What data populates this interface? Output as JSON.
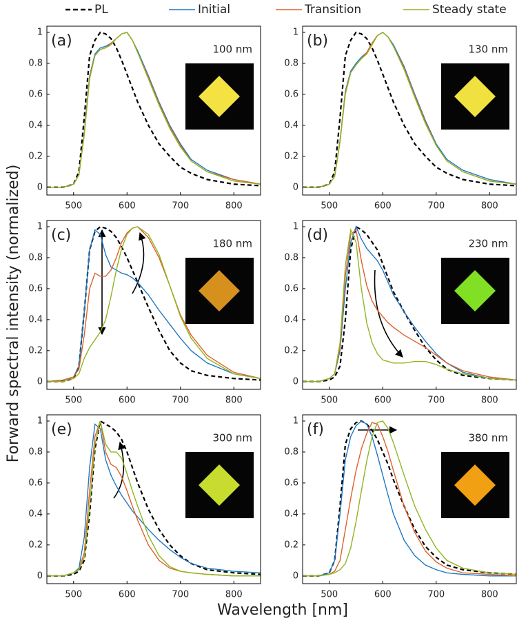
{
  "xlabel": "Wavelength [nm]",
  "ylabel": "Forward spectral intensity (normalized)",
  "chart_data": [
    {
      "type": "line",
      "panel_label": "(a)",
      "annotation": "100 nm",
      "inset_color": "#f4e243",
      "xlim": [
        450,
        850
      ],
      "ylim": [
        -0.05,
        1.04
      ],
      "xticks": [
        500,
        600,
        700,
        800
      ],
      "yticks": [
        0,
        0.2,
        0.4,
        0.6,
        0.8,
        1
      ],
      "x": [
        450,
        480,
        500,
        510,
        520,
        530,
        540,
        550,
        560,
        570,
        580,
        590,
        600,
        610,
        620,
        640,
        660,
        680,
        700,
        720,
        750,
        800,
        850
      ],
      "series": [
        {
          "name": "PL",
          "color": "#000000",
          "dashed": true,
          "values": [
            0,
            0,
            0.02,
            0.1,
            0.45,
            0.85,
            0.95,
            1.0,
            0.99,
            0.96,
            0.9,
            0.82,
            0.73,
            0.64,
            0.55,
            0.4,
            0.28,
            0.2,
            0.13,
            0.09,
            0.05,
            0.02,
            0.01
          ]
        },
        {
          "name": "Initial",
          "color": "#1f77c4",
          "values": [
            0,
            0,
            0.02,
            0.08,
            0.35,
            0.72,
            0.86,
            0.9,
            0.91,
            0.93,
            0.96,
            0.99,
            1.0,
            0.95,
            0.88,
            0.72,
            0.55,
            0.4,
            0.28,
            0.18,
            0.11,
            0.05,
            0.02
          ]
        },
        {
          "name": "Transition",
          "color": "#e0602a",
          "values": [
            0,
            0,
            0.02,
            0.08,
            0.34,
            0.71,
            0.85,
            0.89,
            0.9,
            0.93,
            0.96,
            0.99,
            1.0,
            0.95,
            0.87,
            0.71,
            0.54,
            0.39,
            0.27,
            0.17,
            0.1,
            0.05,
            0.02
          ]
        },
        {
          "name": "Steady state",
          "color": "#8fb51f",
          "values": [
            0,
            0,
            0.02,
            0.08,
            0.34,
            0.7,
            0.85,
            0.89,
            0.9,
            0.92,
            0.96,
            0.99,
            1.0,
            0.95,
            0.87,
            0.7,
            0.53,
            0.38,
            0.26,
            0.17,
            0.1,
            0.04,
            0.02
          ]
        }
      ]
    },
    {
      "type": "line",
      "panel_label": "(b)",
      "annotation": "130 nm",
      "inset_color": "#f0e040",
      "xlim": [
        450,
        850
      ],
      "ylim": [
        -0.05,
        1.04
      ],
      "xticks": [
        500,
        600,
        700,
        800
      ],
      "yticks": [
        0,
        0.2,
        0.4,
        0.6,
        0.8,
        1
      ],
      "x": [
        450,
        480,
        500,
        510,
        520,
        530,
        540,
        550,
        560,
        570,
        580,
        590,
        600,
        610,
        620,
        640,
        660,
        680,
        700,
        720,
        750,
        800,
        850
      ],
      "series": [
        {
          "color": "#000000",
          "dashed": true,
          "values": [
            0,
            0,
            0.02,
            0.1,
            0.45,
            0.85,
            0.95,
            1.0,
            0.99,
            0.96,
            0.9,
            0.82,
            0.73,
            0.64,
            0.55,
            0.4,
            0.28,
            0.2,
            0.13,
            0.09,
            0.05,
            0.02,
            0.01
          ]
        },
        {
          "color": "#1f77c4",
          "values": [
            0,
            0,
            0.02,
            0.07,
            0.3,
            0.62,
            0.75,
            0.8,
            0.84,
            0.87,
            0.93,
            0.98,
            1.0,
            0.97,
            0.92,
            0.78,
            0.6,
            0.43,
            0.28,
            0.18,
            0.11,
            0.05,
            0.02
          ]
        },
        {
          "color": "#e0602a",
          "values": [
            0,
            0,
            0.02,
            0.07,
            0.3,
            0.61,
            0.74,
            0.79,
            0.83,
            0.87,
            0.93,
            0.98,
            1.0,
            0.97,
            0.91,
            0.77,
            0.59,
            0.42,
            0.27,
            0.17,
            0.1,
            0.04,
            0.02
          ]
        },
        {
          "color": "#8fb51f",
          "values": [
            0,
            0,
            0.02,
            0.07,
            0.29,
            0.6,
            0.74,
            0.79,
            0.83,
            0.86,
            0.92,
            0.98,
            1.0,
            0.97,
            0.91,
            0.76,
            0.58,
            0.41,
            0.27,
            0.17,
            0.1,
            0.04,
            0.02
          ]
        }
      ]
    },
    {
      "type": "line",
      "panel_label": "(c)",
      "annotation": "180 nm",
      "inset_color": "#d6901e",
      "xlim": [
        450,
        850
      ],
      "ylim": [
        -0.05,
        1.04
      ],
      "xticks": [
        500,
        600,
        700,
        800
      ],
      "yticks": [
        0,
        0.2,
        0.4,
        0.6,
        0.8,
        1
      ],
      "x": [
        450,
        480,
        500,
        510,
        520,
        530,
        540,
        550,
        560,
        570,
        580,
        590,
        600,
        610,
        620,
        640,
        660,
        680,
        700,
        720,
        750,
        800,
        850
      ],
      "series": [
        {
          "color": "#000000",
          "dashed": true,
          "values": [
            0,
            0,
            0.02,
            0.1,
            0.45,
            0.85,
            0.97,
            1.0,
            0.99,
            0.97,
            0.93,
            0.87,
            0.8,
            0.72,
            0.64,
            0.48,
            0.33,
            0.2,
            0.12,
            0.07,
            0.04,
            0.02,
            0.01
          ]
        },
        {
          "color": "#1f77c4",
          "values": [
            0,
            0.01,
            0.03,
            0.1,
            0.45,
            0.85,
            0.98,
            0.95,
            0.82,
            0.74,
            0.72,
            0.7,
            0.69,
            0.67,
            0.64,
            0.56,
            0.46,
            0.37,
            0.28,
            0.2,
            0.12,
            0.05,
            0.02
          ]
        },
        {
          "color": "#e0602a",
          "values": [
            0,
            0.01,
            0.03,
            0.08,
            0.3,
            0.6,
            0.7,
            0.68,
            0.68,
            0.72,
            0.8,
            0.9,
            0.96,
            0.99,
            1.0,
            0.93,
            0.8,
            0.62,
            0.43,
            0.3,
            0.17,
            0.06,
            0.02
          ]
        },
        {
          "color": "#8fb51f",
          "values": [
            0,
            0,
            0.02,
            0.05,
            0.15,
            0.22,
            0.27,
            0.32,
            0.4,
            0.55,
            0.72,
            0.86,
            0.95,
            0.99,
            1.0,
            0.95,
            0.82,
            0.62,
            0.42,
            0.28,
            0.15,
            0.05,
            0.02
          ]
        }
      ]
    },
    {
      "type": "line",
      "panel_label": "(d)",
      "annotation": "230 nm",
      "inset_color": "#82e024",
      "xlim": [
        450,
        850
      ],
      "ylim": [
        -0.05,
        1.04
      ],
      "xticks": [
        500,
        600,
        700,
        800
      ],
      "yticks": [
        0,
        0.2,
        0.4,
        0.6,
        0.8,
        1
      ],
      "x": [
        450,
        480,
        500,
        510,
        520,
        530,
        540,
        550,
        560,
        570,
        580,
        590,
        600,
        610,
        620,
        640,
        660,
        680,
        700,
        720,
        750,
        800,
        850
      ],
      "series": [
        {
          "color": "#000000",
          "dashed": true,
          "values": [
            0,
            0,
            0.01,
            0.03,
            0.1,
            0.4,
            0.85,
            1.0,
            0.98,
            0.95,
            0.9,
            0.85,
            0.76,
            0.67,
            0.58,
            0.45,
            0.33,
            0.22,
            0.14,
            0.08,
            0.04,
            0.02,
            0.01
          ]
        },
        {
          "color": "#1f77c4",
          "values": [
            0,
            0,
            0.02,
            0.05,
            0.2,
            0.6,
            0.9,
            1.0,
            0.92,
            0.86,
            0.82,
            0.78,
            0.72,
            0.64,
            0.56,
            0.45,
            0.35,
            0.26,
            0.18,
            0.12,
            0.06,
            0.02,
            0.01
          ]
        },
        {
          "color": "#e0602a",
          "values": [
            0,
            0,
            0.02,
            0.05,
            0.22,
            0.68,
            0.95,
            0.98,
            0.78,
            0.62,
            0.52,
            0.46,
            0.42,
            0.38,
            0.35,
            0.3,
            0.26,
            0.22,
            0.17,
            0.12,
            0.07,
            0.03,
            0.01
          ]
        },
        {
          "color": "#8fb51f",
          "values": [
            0,
            0,
            0.02,
            0.05,
            0.25,
            0.75,
            0.98,
            0.9,
            0.6,
            0.38,
            0.25,
            0.18,
            0.14,
            0.13,
            0.12,
            0.12,
            0.13,
            0.13,
            0.11,
            0.08,
            0.05,
            0.02,
            0.01
          ]
        }
      ]
    },
    {
      "type": "line",
      "panel_label": "(e)",
      "annotation": "300 nm",
      "inset_color": "#c8dc30",
      "xlim": [
        450,
        850
      ],
      "ylim": [
        -0.05,
        1.04
      ],
      "xticks": [
        500,
        600,
        700,
        800
      ],
      "yticks": [
        0,
        0.2,
        0.4,
        0.6,
        0.8,
        1
      ],
      "x": [
        450,
        480,
        500,
        510,
        520,
        530,
        540,
        550,
        560,
        570,
        580,
        590,
        600,
        610,
        620,
        640,
        660,
        680,
        700,
        720,
        750,
        800,
        850
      ],
      "series": [
        {
          "color": "#000000",
          "dashed": true,
          "values": [
            0,
            0,
            0.01,
            0.03,
            0.1,
            0.4,
            0.82,
            1.0,
            0.98,
            0.96,
            0.93,
            0.88,
            0.8,
            0.7,
            0.6,
            0.43,
            0.3,
            0.2,
            0.13,
            0.08,
            0.04,
            0.02,
            0.01
          ]
        },
        {
          "color": "#1f77c4",
          "values": [
            0,
            0,
            0.02,
            0.05,
            0.25,
            0.7,
            0.98,
            0.95,
            0.75,
            0.65,
            0.58,
            0.52,
            0.47,
            0.42,
            0.38,
            0.3,
            0.23,
            0.17,
            0.12,
            0.08,
            0.05,
            0.03,
            0.02
          ]
        },
        {
          "color": "#e0602a",
          "values": [
            0,
            0,
            0.02,
            0.04,
            0.15,
            0.55,
            0.9,
            1.0,
            0.8,
            0.72,
            0.7,
            0.64,
            0.55,
            0.45,
            0.36,
            0.2,
            0.1,
            0.05,
            0.03,
            0.02,
            0.01,
            0,
            0
          ]
        },
        {
          "color": "#8fb51f",
          "values": [
            0,
            0,
            0.02,
            0.04,
            0.12,
            0.45,
            0.85,
            1.0,
            0.85,
            0.8,
            0.8,
            0.76,
            0.66,
            0.55,
            0.45,
            0.26,
            0.13,
            0.06,
            0.03,
            0.02,
            0.01,
            0,
            0
          ]
        }
      ]
    },
    {
      "type": "line",
      "panel_label": "(f)",
      "annotation": "380 nm",
      "inset_color": "#f0a012",
      "xlim": [
        450,
        850
      ],
      "ylim": [
        -0.05,
        1.04
      ],
      "xticks": [
        500,
        600,
        700,
        800
      ],
      "yticks": [
        0,
        0.2,
        0.4,
        0.6,
        0.8,
        1
      ],
      "x": [
        450,
        480,
        500,
        510,
        520,
        530,
        540,
        550,
        560,
        570,
        580,
        590,
        600,
        610,
        620,
        640,
        660,
        680,
        700,
        720,
        750,
        800,
        850
      ],
      "series": [
        {
          "color": "#000000",
          "dashed": true,
          "values": [
            0,
            0,
            0.02,
            0.1,
            0.45,
            0.85,
            0.95,
            0.99,
            1.0,
            0.98,
            0.94,
            0.88,
            0.8,
            0.72,
            0.62,
            0.45,
            0.3,
            0.19,
            0.12,
            0.07,
            0.04,
            0.02,
            0.01
          ]
        },
        {
          "color": "#1f77c4",
          "values": [
            0,
            0,
            0.02,
            0.1,
            0.4,
            0.75,
            0.9,
            0.97,
            1.0,
            0.98,
            0.9,
            0.78,
            0.65,
            0.52,
            0.4,
            0.23,
            0.13,
            0.07,
            0.04,
            0.02,
            0.01,
            0,
            0
          ]
        },
        {
          "color": "#e0602a",
          "values": [
            0,
            0,
            0.01,
            0.03,
            0.1,
            0.3,
            0.5,
            0.68,
            0.82,
            0.92,
            0.99,
            0.98,
            0.9,
            0.8,
            0.68,
            0.45,
            0.28,
            0.16,
            0.09,
            0.05,
            0.02,
            0.01,
            0
          ]
        },
        {
          "color": "#8fb51f",
          "values": [
            0,
            0,
            0.01,
            0.02,
            0.04,
            0.08,
            0.18,
            0.35,
            0.55,
            0.74,
            0.9,
            0.99,
            1.0,
            0.95,
            0.86,
            0.65,
            0.45,
            0.3,
            0.18,
            0.1,
            0.05,
            0.02,
            0.01
          ]
        }
      ]
    }
  ]
}
